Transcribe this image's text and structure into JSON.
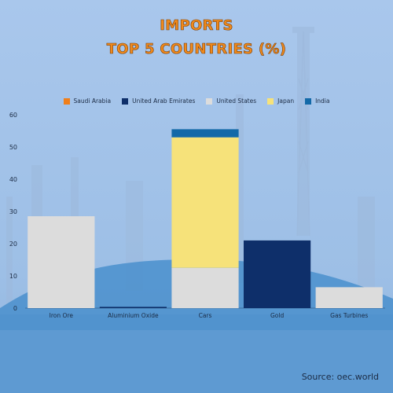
{
  "title": {
    "line1": "IMPORTS",
    "line2": "TOP 5 COUNTRIES (%)"
  },
  "source": "Source: oec.world",
  "colors": {
    "saudi_arabia": "#f07f1a",
    "uae": "#0e2f6a",
    "united_states": "#dcdcdc",
    "japan": "#f6e27a",
    "india": "#1369a8"
  },
  "chart_data": {
    "type": "bar",
    "stacked": true,
    "categories": [
      "Iron Ore",
      "Aluminium Oxide",
      "Cars",
      "Gold",
      "Gas Turbines"
    ],
    "series": [
      {
        "name": "Saudi Arabia",
        "color": "#f07f1a",
        "values": [
          0,
          0,
          0,
          0,
          0
        ]
      },
      {
        "name": "United Arab Emirates",
        "color": "#0e2f6a",
        "values": [
          0,
          0.4,
          0,
          21,
          0
        ]
      },
      {
        "name": "United States",
        "color": "#dcdcdc",
        "values": [
          28.5,
          0,
          12.5,
          0,
          6.5
        ]
      },
      {
        "name": "Japan",
        "color": "#f6e27a",
        "values": [
          0,
          0,
          40.5,
          0,
          0
        ]
      },
      {
        "name": "India",
        "color": "#1369a8",
        "values": [
          0,
          0,
          2.5,
          0,
          0
        ]
      }
    ],
    "yticks": [
      "0",
      "10",
      "20",
      "30",
      "40",
      "50",
      "60"
    ],
    "ylim": [
      0,
      60
    ],
    "legend_position": "top",
    "grid": false
  }
}
